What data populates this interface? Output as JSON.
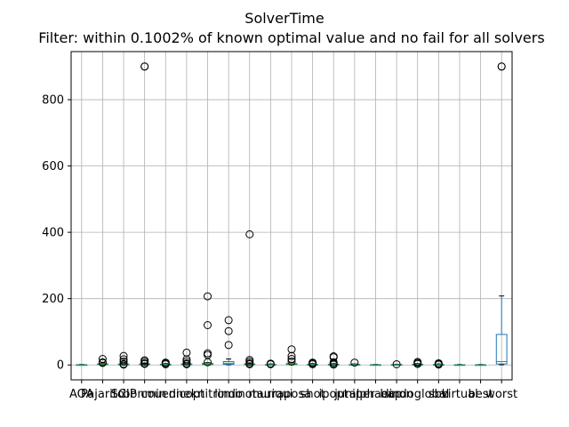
{
  "chart_data": {
    "type": "box",
    "title": "SolverTime",
    "subtitle": "Filter: within 0.1002% of known optimal value and no fail for all solvers",
    "xlabel": "",
    "ylabel": "",
    "ylim": [
      -45,
      945
    ],
    "yticks": [
      0,
      200,
      400,
      600,
      800
    ],
    "grid": true,
    "colors": {
      "box": "#1f77b4",
      "median": "#2ca02c",
      "flier": "#000000",
      "grid": "#b0b0b0"
    },
    "categories": [
      "AOA",
      "Pajarito",
      "SCIP",
      "bonmin",
      "couenne",
      "dicopt",
      "knitro",
      "lindo",
      "minotaur",
      "muriqui",
      "raposa",
      "shot",
      "ipopt",
      "juniper",
      "alphaecp",
      "baron",
      "lindoglobal",
      "sbb",
      "virtual",
      "best",
      "worst"
    ],
    "boxes": [
      {
        "category": "AOA",
        "q1": 0.2,
        "median": 0.4,
        "q3": 0.8,
        "whisker_low": 0.1,
        "whisker_high": 1.5,
        "fliers": []
      },
      {
        "category": "Pajarito",
        "q1": 0.8,
        "median": 1.5,
        "q3": 3,
        "whisker_low": 0.3,
        "whisker_high": 6,
        "fliers": [
          18,
          8,
          6
        ]
      },
      {
        "category": "SCIP",
        "q1": 0.5,
        "median": 1,
        "q3": 2.5,
        "whisker_low": 0.2,
        "whisker_high": 5,
        "fliers": [
          27,
          17,
          10,
          3,
          1
        ]
      },
      {
        "category": "bonmin",
        "q1": 0.8,
        "median": 1.5,
        "q3": 3,
        "whisker_low": 0.3,
        "whisker_high": 6,
        "fliers": [
          900,
          900,
          14,
          10,
          5,
          3
        ]
      },
      {
        "category": "couenne",
        "q1": 0.4,
        "median": 0.8,
        "q3": 2,
        "whisker_low": 0.2,
        "whisker_high": 4,
        "fliers": [
          7,
          5,
          2
        ]
      },
      {
        "category": "dicopt",
        "q1": 0.8,
        "median": 1.5,
        "q3": 3,
        "whisker_low": 0.3,
        "whisker_high": 6,
        "fliers": [
          37,
          17,
          11,
          5,
          2
        ]
      },
      {
        "category": "knitro",
        "q1": 1,
        "median": 2,
        "q3": 5,
        "whisker_low": 0.4,
        "whisker_high": 7,
        "fliers": [
          207,
          120,
          35,
          30,
          8
        ]
      },
      {
        "category": "lindo",
        "q1": 2,
        "median": 5,
        "q3": 10,
        "whisker_low": 0.5,
        "whisker_high": 18,
        "fliers": [
          135,
          102,
          60
        ]
      },
      {
        "category": "minotaur",
        "q1": 0.8,
        "median": 1.5,
        "q3": 3,
        "whisker_low": 0.3,
        "whisker_high": 6,
        "fliers": [
          394,
          15,
          10,
          5,
          2
        ]
      },
      {
        "category": "muriqui",
        "q1": 0.3,
        "median": 0.6,
        "q3": 1.5,
        "whisker_low": 0.1,
        "whisker_high": 3,
        "fliers": [
          4,
          2
        ]
      },
      {
        "category": "raposa",
        "q1": 1,
        "median": 2,
        "q3": 4,
        "whisker_low": 0.4,
        "whisker_high": 7,
        "fliers": [
          47,
          27,
          18,
          10
        ]
      },
      {
        "category": "shot",
        "q1": 0.5,
        "median": 1,
        "q3": 2,
        "whisker_low": 0.2,
        "whisker_high": 4,
        "fliers": [
          7,
          5,
          2
        ]
      },
      {
        "category": "ipopt",
        "q1": 0.5,
        "median": 1,
        "q3": 2,
        "whisker_low": 0.2,
        "whisker_high": 4,
        "fliers": [
          26,
          23,
          8,
          4,
          1
        ]
      },
      {
        "category": "juniper",
        "q1": 0.4,
        "median": 0.8,
        "q3": 1.5,
        "whisker_low": 0.2,
        "whisker_high": 3,
        "fliers": [
          7
        ]
      },
      {
        "category": "alphaecp",
        "q1": 0.2,
        "median": 0.4,
        "q3": 0.8,
        "whisker_low": 0.1,
        "whisker_high": 1.5,
        "fliers": []
      },
      {
        "category": "baron",
        "q1": 0.3,
        "median": 0.6,
        "q3": 1.2,
        "whisker_low": 0.1,
        "whisker_high": 2,
        "fliers": [
          2
        ]
      },
      {
        "category": "lindoglobal",
        "q1": 0.5,
        "median": 1,
        "q3": 2,
        "whisker_low": 0.2,
        "whisker_high": 4,
        "fliers": [
          9,
          6,
          3
        ]
      },
      {
        "category": "sbb",
        "q1": 0.4,
        "median": 0.8,
        "q3": 1.5,
        "whisker_low": 0.2,
        "whisker_high": 3,
        "fliers": [
          5,
          3,
          1
        ]
      },
      {
        "category": "virtual",
        "q1": 0.2,
        "median": 0.4,
        "q3": 0.7,
        "whisker_low": 0.1,
        "whisker_high": 1.5,
        "fliers": []
      },
      {
        "category": "best",
        "q1": 0.2,
        "median": 0.4,
        "q3": 0.7,
        "whisker_low": 0.1,
        "whisker_high": 1.5,
        "fliers": []
      },
      {
        "category": "worst",
        "q1": 3,
        "median": 10,
        "q3": 92,
        "whisker_low": 0.5,
        "whisker_high": 208,
        "fliers": [
          900,
          900
        ]
      }
    ]
  }
}
